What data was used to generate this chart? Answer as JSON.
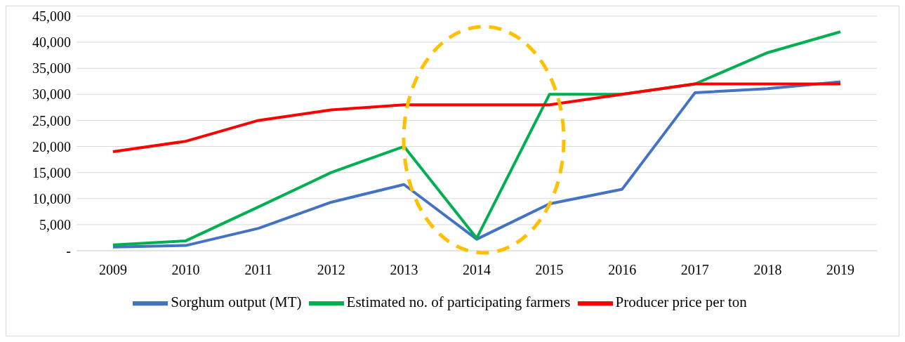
{
  "chart_data": {
    "type": "line",
    "categories": [
      "2009",
      "2010",
      "2011",
      "2012",
      "2013",
      "2014",
      "2015",
      "2016",
      "2017",
      "2018",
      "2019"
    ],
    "series": [
      {
        "name": "Sorghum output (MT)",
        "color": "#4472c4",
        "values": [
          700,
          1000,
          4300,
          9300,
          12700,
          2200,
          9000,
          11800,
          30300,
          31100,
          32400
        ]
      },
      {
        "name": "Estimated no. of participating farmers",
        "color": "#00b050",
        "values": [
          1100,
          1900,
          8400,
          15000,
          20000,
          2400,
          30000,
          30000,
          32000,
          38000,
          42000
        ]
      },
      {
        "name": "Producer price per ton",
        "color": "#ff0000",
        "values": [
          19000,
          21000,
          25000,
          27000,
          28000,
          28000,
          28000,
          30000,
          32000,
          32000,
          32000
        ]
      }
    ],
    "ylim": [
      0,
      45000
    ],
    "yticks": [
      {
        "value": 0,
        "label": "-"
      },
      {
        "value": 5000,
        "label": "5,000"
      },
      {
        "value": 10000,
        "label": "10,000"
      },
      {
        "value": 15000,
        "label": "15,000"
      },
      {
        "value": 20000,
        "label": "20,000"
      },
      {
        "value": 25000,
        "label": "25,000"
      },
      {
        "value": 30000,
        "label": "30,000"
      },
      {
        "value": 35000,
        "label": "35,000"
      },
      {
        "value": 40000,
        "label": "40,000"
      },
      {
        "value": 45000,
        "label": "45,000"
      }
    ],
    "grid": "y",
    "legend": "bottom",
    "marker": "none",
    "line_style": "solid"
  }
}
